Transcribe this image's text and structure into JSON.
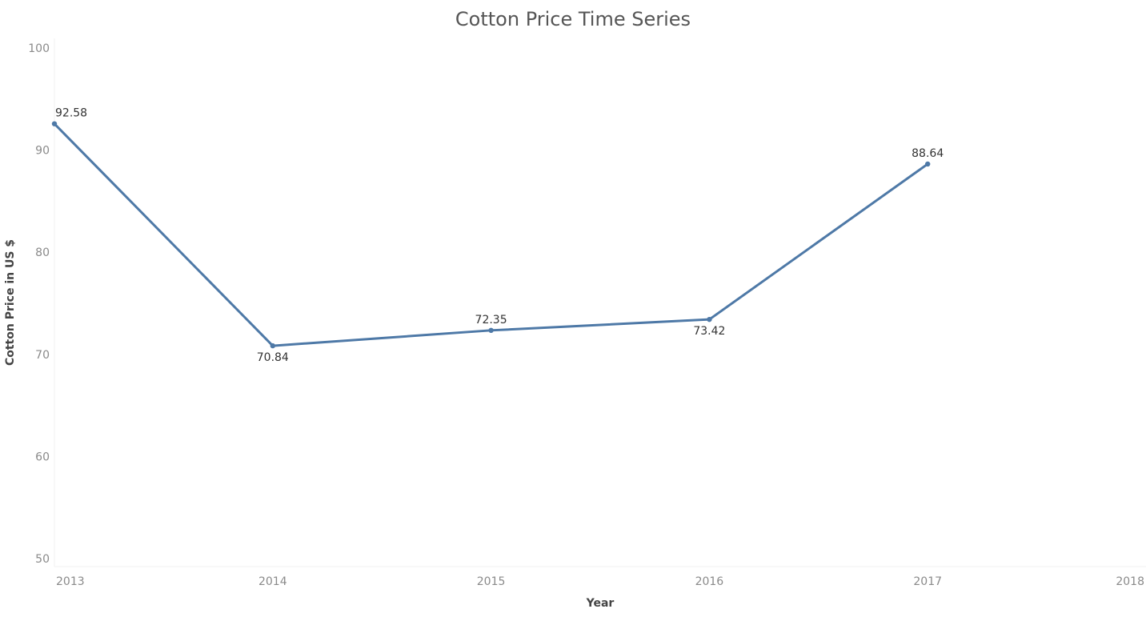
{
  "chart_data": {
    "type": "line",
    "title": "Cotton Price Time Series",
    "xlabel": "Year",
    "ylabel": "Cotton Price in US $",
    "x_ticks": [
      "2013",
      "2014",
      "2015",
      "2016",
      "2017",
      "2018"
    ],
    "y_ticks": [
      50,
      60,
      70,
      80,
      90,
      100
    ],
    "xlim": [
      2013,
      2018
    ],
    "ylim": [
      50,
      100
    ],
    "grid": false,
    "legend": "none",
    "color": "#4e79a7",
    "series": [
      {
        "x": [
          2013,
          2014,
          2015,
          2016,
          2017
        ],
        "values": [
          92.58,
          70.84,
          72.35,
          73.42,
          88.64
        ],
        "labels": [
          "92.58",
          "70.84",
          "72.35",
          "73.42",
          "88.64"
        ],
        "label_position": [
          "above",
          "below",
          "above",
          "below",
          "above"
        ]
      }
    ]
  }
}
